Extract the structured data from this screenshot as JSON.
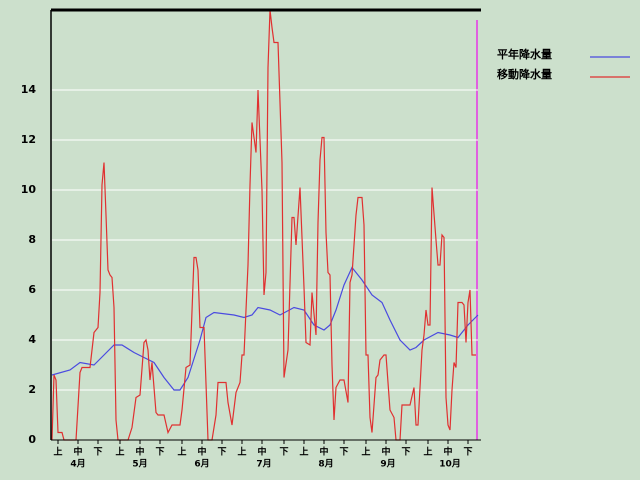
{
  "chart_data": {
    "type": "line",
    "xlim": [
      0,
      213
    ],
    "ylim": [
      0,
      17.2
    ],
    "yticks": [
      0,
      2,
      4,
      6,
      8,
      10,
      12,
      14
    ],
    "xticks": [
      {
        "value": 3,
        "label": "上"
      },
      {
        "value": 13,
        "label": "中"
      },
      {
        "value": 23,
        "label": "下"
      },
      {
        "value": 34,
        "label": "上"
      },
      {
        "value": 44,
        "label": "中"
      },
      {
        "value": 54,
        "label": "下"
      },
      {
        "value": 65,
        "label": "上"
      },
      {
        "value": 75,
        "label": "中"
      },
      {
        "value": 85,
        "label": "下"
      },
      {
        "value": 95,
        "label": "上"
      },
      {
        "value": 105,
        "label": "中"
      },
      {
        "value": 116,
        "label": "下"
      },
      {
        "value": 126,
        "label": "上"
      },
      {
        "value": 136,
        "label": "中"
      },
      {
        "value": 146,
        "label": "下"
      },
      {
        "value": 157,
        "label": "上"
      },
      {
        "value": 167,
        "label": "中"
      },
      {
        "value": 177,
        "label": "下"
      },
      {
        "value": 188,
        "label": "上"
      },
      {
        "value": 198,
        "label": "中"
      },
      {
        "value": 208,
        "label": "下"
      }
    ],
    "month_ticks": [
      {
        "value": 13,
        "label": "4月"
      },
      {
        "value": 44,
        "label": "5月"
      },
      {
        "value": 75,
        "label": "6月"
      },
      {
        "value": 106,
        "label": "7月"
      },
      {
        "value": 137,
        "label": "8月"
      },
      {
        "value": 168,
        "label": "9月"
      },
      {
        "value": 199,
        "label": "10月"
      }
    ],
    "grid": true,
    "legend": "right",
    "series": [
      {
        "name": "平年降水量",
        "color": "#4a4ae0",
        "x": [
          0,
          9,
          14,
          21,
          26,
          31,
          35,
          41,
          46,
          51,
          56,
          61,
          64,
          68,
          70,
          74,
          77,
          81,
          91,
          96,
          100,
          103,
          109,
          114,
          121,
          126,
          131,
          136,
          139,
          142,
          146,
          150,
          155,
          160,
          165,
          169,
          174,
          179,
          182,
          186,
          193,
          199,
          203,
          208,
          213
        ],
        "values": [
          2.6,
          2.8,
          3.1,
          3.0,
          3.4,
          3.8,
          3.8,
          3.5,
          3.3,
          3.1,
          2.5,
          2.0,
          2.0,
          2.5,
          3.0,
          4.0,
          4.9,
          5.1,
          5.0,
          4.9,
          5.0,
          5.3,
          5.2,
          5.0,
          5.3,
          5.2,
          4.6,
          4.4,
          4.6,
          5.2,
          6.2,
          6.9,
          6.4,
          5.8,
          5.5,
          4.8,
          4.0,
          3.6,
          3.7,
          4.0,
          4.3,
          4.2,
          4.1,
          4.6,
          5.0
        ]
      },
      {
        "name": "移動降水量",
        "color": "#e03030",
        "x": [
          0,
          1,
          2,
          3,
          5,
          6,
          12,
          14,
          15,
          19,
          21,
          23,
          24,
          25,
          26,
          27,
          28,
          29,
          30,
          31,
          32,
          33,
          38,
          40,
          42,
          44,
          46,
          47,
          48,
          49,
          50,
          52,
          53,
          56,
          58,
          60,
          64,
          65,
          67,
          69,
          71,
          72,
          73,
          74,
          76,
          78,
          80,
          82,
          83,
          87,
          88,
          90,
          92,
          94,
          95,
          96,
          98,
          99,
          100,
          102,
          103,
          105,
          106,
          107,
          108,
          109,
          110,
          111,
          113,
          115,
          116,
          118,
          120,
          121,
          122,
          124,
          126,
          127,
          129,
          130,
          132,
          133,
          134,
          135,
          136,
          137,
          138,
          139,
          140,
          141,
          142,
          144,
          146,
          148,
          149,
          150,
          152,
          153,
          155,
          156,
          157,
          158,
          159,
          160,
          162,
          163,
          164,
          166,
          167,
          169,
          171,
          172,
          174,
          175,
          179,
          181,
          182,
          183,
          185,
          186,
          187,
          188,
          189,
          190,
          192,
          193,
          194,
          195,
          196,
          197,
          198,
          199,
          200,
          201,
          202,
          203,
          205,
          206,
          207,
          208,
          209,
          210,
          212
        ],
        "values": [
          0,
          2.6,
          2.4,
          0.3,
          0.3,
          0,
          0,
          2.7,
          2.9,
          2.9,
          4.3,
          4.5,
          5.9,
          10.2,
          11.1,
          9.0,
          6.8,
          6.6,
          6.5,
          5.3,
          0.8,
          0,
          0,
          0.5,
          1.7,
          1.8,
          3.9,
          4.0,
          3.6,
          2.4,
          3.1,
          1.1,
          1.0,
          1.0,
          0.3,
          0.6,
          0.6,
          1.2,
          2.9,
          3.0,
          7.3,
          7.3,
          6.8,
          4.5,
          4.5,
          0,
          0,
          1.0,
          2.3,
          2.3,
          1.5,
          0.6,
          1.9,
          2.3,
          3.4,
          3.4,
          7.0,
          10.2,
          12.7,
          11.5,
          14.0,
          10.0,
          5.8,
          6.7,
          14.9,
          17.2,
          16.5,
          15.9,
          15.9,
          11.1,
          2.5,
          3.6,
          8.9,
          8.9,
          7.8,
          10.1,
          6.1,
          3.9,
          3.8,
          5.9,
          4.2,
          8.7,
          11.2,
          12.1,
          12.1,
          8.3,
          6.7,
          6.6,
          3.0,
          0.8,
          2.1,
          2.4,
          2.4,
          1.5,
          6.3,
          6.6,
          9.0,
          9.7,
          9.7,
          8.6,
          3.4,
          3.4,
          0.9,
          0.3,
          2.5,
          2.6,
          3.2,
          3.4,
          3.4,
          1.2,
          0.9,
          0,
          0,
          1.4,
          1.4,
          2.1,
          0.6,
          0.6,
          3.6,
          4.2,
          5.2,
          4.6,
          4.6,
          10.1,
          8.0,
          7.0,
          7.0,
          8.2,
          8.1,
          1.7,
          0.6,
          0.4,
          2.0,
          3.1,
          2.9,
          5.5,
          5.5,
          5.4,
          3.9,
          5.5,
          6.0,
          3.4,
          3.4
        ]
      }
    ]
  }
}
